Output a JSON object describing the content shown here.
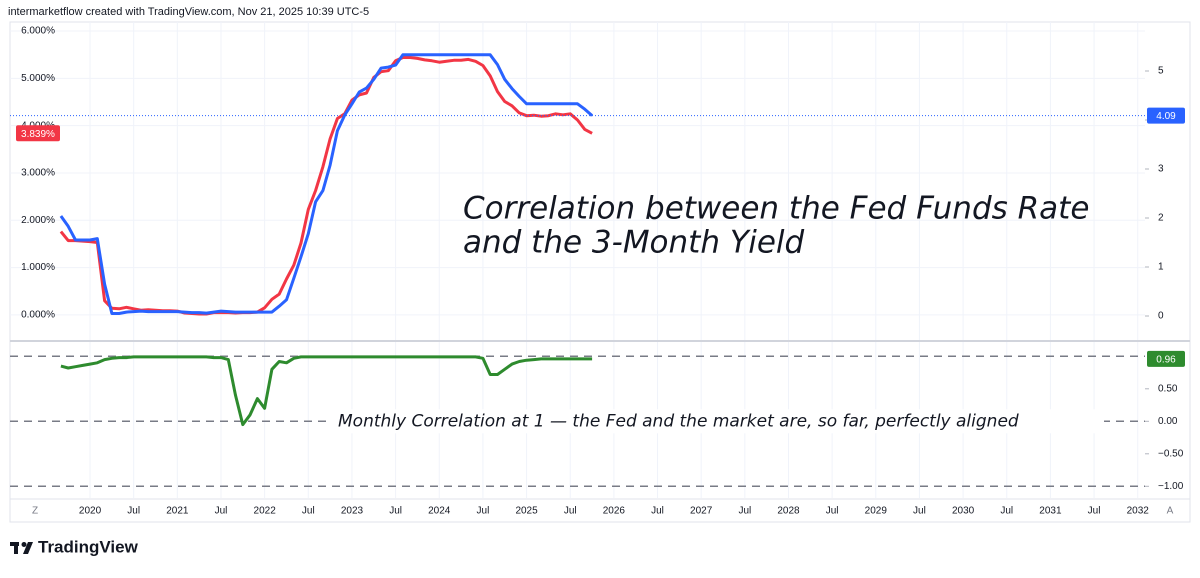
{
  "header": "intermarketflow created with TradingView.com, Nov 21, 2025 10:39 UTC-5",
  "footer": "TradingView",
  "controls": [
    "Z",
    "A"
  ],
  "chart_data": [
    {
      "type": "line",
      "annotation": [
        "Correlation between the Fed Funds Rate",
        "and the 3-Month Yield"
      ],
      "x": [
        "2019-09",
        "2019-10",
        "2019-11",
        "2019-12",
        "2020-01",
        "2020-02",
        "2020-03",
        "2020-04",
        "2020-05",
        "2020-06",
        "2020-07",
        "2020-08",
        "2020-09",
        "2020-10",
        "2020-11",
        "2020-12",
        "2021-01",
        "2021-02",
        "2021-03",
        "2021-04",
        "2021-05",
        "2021-06",
        "2021-07",
        "2021-08",
        "2021-09",
        "2021-10",
        "2021-11",
        "2021-12",
        "2022-01",
        "2022-02",
        "2022-03",
        "2022-04",
        "2022-05",
        "2022-06",
        "2022-07",
        "2022-08",
        "2022-09",
        "2022-10",
        "2022-11",
        "2022-12",
        "2023-01",
        "2023-02",
        "2023-03",
        "2023-04",
        "2023-05",
        "2023-06",
        "2023-07",
        "2023-08",
        "2023-09",
        "2023-10",
        "2023-11",
        "2023-12",
        "2024-01",
        "2024-02",
        "2024-03",
        "2024-04",
        "2024-05",
        "2024-06",
        "2024-07",
        "2024-08",
        "2024-09",
        "2024-10",
        "2024-11",
        "2024-12",
        "2025-01",
        "2025-02",
        "2025-03",
        "2025-04",
        "2025-05",
        "2025-06",
        "2025-07",
        "2025-08",
        "2025-09",
        "2025-10"
      ],
      "xlim": [
        "2019-02",
        "2032-02"
      ],
      "ylim": [
        -0.53,
        6.19
      ],
      "yticks": [
        {
          "value": 0,
          "label": "0.000%"
        },
        {
          "value": 1,
          "label": "1.000%"
        },
        {
          "value": 2,
          "label": "2.000%"
        },
        {
          "value": 3,
          "label": "3.000%"
        },
        {
          "value": 4,
          "label": "4.000%"
        },
        {
          "value": 5,
          "label": "5.000%"
        },
        {
          "value": 6,
          "label": "6.000%"
        }
      ],
      "y2lim": [
        -0.49,
        6
      ],
      "y2ticks": [
        0,
        1,
        2,
        3,
        4,
        5
      ],
      "grid": true,
      "series": [
        {
          "color": "#f23645",
          "values": [
            1.76,
            1.57,
            1.57,
            1.56,
            1.55,
            1.53,
            0.3,
            0.14,
            0.13,
            0.16,
            0.13,
            0.1,
            0.11,
            0.1,
            0.09,
            0.09,
            0.08,
            0.04,
            0.03,
            0.02,
            0.02,
            0.05,
            0.05,
            0.05,
            0.04,
            0.05,
            0.05,
            0.06,
            0.15,
            0.33,
            0.44,
            0.76,
            1.05,
            1.52,
            2.23,
            2.63,
            3.13,
            3.72,
            4.15,
            4.25,
            4.54,
            4.65,
            4.69,
            5.02,
            5.14,
            5.16,
            5.37,
            5.44,
            5.44,
            5.42,
            5.39,
            5.37,
            5.34,
            5.36,
            5.38,
            5.38,
            5.4,
            5.36,
            5.27,
            5.05,
            4.72,
            4.51,
            4.42,
            4.27,
            4.21,
            4.22,
            4.2,
            4.21,
            4.25,
            4.23,
            4.25,
            4.12,
            3.92,
            3.839
          ],
          "value_labels": [
            null,
            null,
            null,
            null,
            null,
            null,
            null,
            null,
            null,
            null,
            null,
            null,
            null,
            null,
            null,
            null,
            null,
            null,
            null,
            null,
            null,
            null,
            null,
            null,
            null,
            null,
            null,
            null,
            null,
            null,
            null,
            null,
            null,
            null,
            null,
            null,
            null,
            null,
            null,
            null,
            null,
            null,
            null,
            null,
            null,
            null,
            null,
            null,
            null,
            null,
            null,
            null,
            null,
            null,
            null,
            null,
            null,
            null,
            null,
            null,
            null,
            null,
            null,
            null,
            null,
            null,
            null,
            null,
            null,
            null,
            null,
            null,
            null,
            "3.839%"
          ]
        },
        {
          "color": "#2962ff",
          "axis": "y2",
          "values": [
            2.04,
            1.83,
            1.55,
            1.55,
            1.55,
            1.58,
            0.65,
            0.05,
            0.05,
            0.08,
            0.09,
            0.1,
            0.09,
            0.09,
            0.09,
            0.09,
            0.09,
            0.08,
            0.07,
            0.07,
            0.06,
            0.08,
            0.1,
            0.09,
            0.08,
            0.08,
            0.08,
            0.08,
            0.08,
            0.08,
            0.2,
            0.33,
            0.77,
            1.21,
            1.68,
            2.33,
            2.56,
            3.08,
            3.78,
            4.1,
            4.33,
            4.57,
            4.65,
            4.83,
            5.06,
            5.08,
            5.12,
            5.33,
            5.33,
            5.33,
            5.33,
            5.33,
            5.33,
            5.33,
            5.33,
            5.33,
            5.33,
            5.33,
            5.33,
            5.33,
            5.13,
            4.83,
            4.64,
            4.48,
            4.33,
            4.33,
            4.33,
            4.33,
            4.33,
            4.33,
            4.33,
            4.33,
            4.22,
            4.09
          ]
        }
      ]
    },
    {
      "type": "line",
      "annotation": [
        "Monthly Correlation at 1 — the Fed and the market are, so far, perfectly aligned"
      ],
      "yaxis_side": "right",
      "x": [
        "2019-09",
        "2019-10",
        "2019-11",
        "2019-12",
        "2020-01",
        "2020-02",
        "2020-03",
        "2020-04",
        "2020-05",
        "2020-06",
        "2020-07",
        "2020-08",
        "2020-09",
        "2020-10",
        "2020-11",
        "2020-12",
        "2021-01",
        "2021-02",
        "2021-03",
        "2021-04",
        "2021-05",
        "2021-06",
        "2021-07",
        "2021-08",
        "2021-09",
        "2021-10",
        "2021-11",
        "2021-12",
        "2022-01",
        "2022-02",
        "2022-03",
        "2022-04",
        "2022-05",
        "2022-06",
        "2022-07",
        "2022-08",
        "2022-09",
        "2022-10",
        "2022-11",
        "2022-12",
        "2023-01",
        "2023-02",
        "2023-03",
        "2023-04",
        "2023-05",
        "2023-06",
        "2023-07",
        "2023-08",
        "2023-09",
        "2023-10",
        "2023-11",
        "2023-12",
        "2024-01",
        "2024-02",
        "2024-03",
        "2024-04",
        "2024-05",
        "2024-06",
        "2024-07",
        "2024-08",
        "2024-09",
        "2024-10",
        "2024-11",
        "2024-12",
        "2025-01",
        "2025-02",
        "2025-03",
        "2025-04",
        "2025-05",
        "2025-06",
        "2025-07",
        "2025-08",
        "2025-09",
        "2025-10"
      ],
      "xlim": [
        "2019-02",
        "2032-02"
      ],
      "xticks": [
        {
          "value": "2020-01",
          "label": "2020"
        },
        {
          "value": "2020-07",
          "label": "Jul"
        },
        {
          "value": "2021-01",
          "label": "2021"
        },
        {
          "value": "2021-07",
          "label": "Jul"
        },
        {
          "value": "2022-01",
          "label": "2022"
        },
        {
          "value": "2022-07",
          "label": "Jul"
        },
        {
          "value": "2023-01",
          "label": "2023"
        },
        {
          "value": "2023-07",
          "label": "Jul"
        },
        {
          "value": "2024-01",
          "label": "2024"
        },
        {
          "value": "2024-07",
          "label": "Jul"
        },
        {
          "value": "2025-01",
          "label": "2025"
        },
        {
          "value": "2025-07",
          "label": "Jul"
        },
        {
          "value": "2026-01",
          "label": "2026"
        },
        {
          "value": "2026-07",
          "label": "Jul"
        },
        {
          "value": "2027-01",
          "label": "2027"
        },
        {
          "value": "2027-07",
          "label": "Jul"
        },
        {
          "value": "2028-01",
          "label": "2028"
        },
        {
          "value": "2028-07",
          "label": "Jul"
        },
        {
          "value": "2029-01",
          "label": "2029"
        },
        {
          "value": "2029-07",
          "label": "Jul"
        },
        {
          "value": "2030-01",
          "label": "2030"
        },
        {
          "value": "2030-07",
          "label": "Jul"
        },
        {
          "value": "2031-01",
          "label": "2031"
        },
        {
          "value": "2031-07",
          "label": "Jul"
        },
        {
          "value": "2032-01",
          "label": "2032"
        }
      ],
      "ylim": [
        -1.18,
        1.22
      ],
      "yticks": [
        {
          "value": 0.5,
          "label": "0.50"
        },
        {
          "value": 0,
          "label": "0.00"
        },
        {
          "value": -0.5,
          "label": "−0.50"
        },
        {
          "value": -1,
          "label": "−1.00"
        }
      ],
      "hlines": [
        1,
        0,
        -1
      ],
      "series": [
        {
          "color": "#2e8b2e",
          "values": [
            0.85,
            0.82,
            0.84,
            0.86,
            0.88,
            0.9,
            0.95,
            0.97,
            0.98,
            0.98,
            0.99,
            0.99,
            0.99,
            0.99,
            0.99,
            0.99,
            0.99,
            0.99,
            0.99,
            0.99,
            0.99,
            0.98,
            0.98,
            0.95,
            0.4,
            -0.05,
            0.1,
            0.35,
            0.2,
            0.8,
            0.92,
            0.9,
            0.97,
            0.99,
            0.99,
            0.99,
            0.99,
            0.99,
            0.99,
            0.99,
            0.99,
            0.99,
            0.99,
            0.99,
            0.99,
            0.99,
            0.99,
            0.99,
            0.99,
            0.99,
            0.99,
            0.99,
            0.99,
            0.99,
            0.99,
            0.99,
            0.99,
            0.99,
            0.97,
            0.72,
            0.72,
            0.8,
            0.88,
            0.92,
            0.94,
            0.95,
            0.96,
            0.96,
            0.96,
            0.96,
            0.96,
            0.96,
            0.96,
            0.96
          ]
        }
      ]
    }
  ]
}
